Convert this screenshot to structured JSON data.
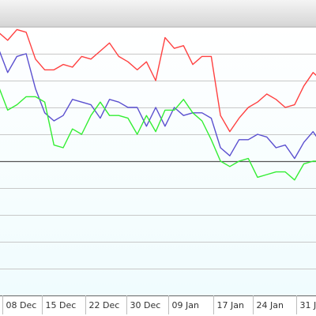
{
  "chart_data": {
    "type": "line",
    "grid": true,
    "x_ticks": [
      "08 Dec",
      "15 Dec",
      "22 Dec",
      "30 Dec",
      "09 Jan",
      "17 Jan",
      "24 Jan",
      "31 J"
    ],
    "y_axis": {
      "min": 0,
      "max": 100,
      "gridlines": [
        10,
        20,
        30,
        40,
        50,
        60,
        70,
        80,
        90,
        100
      ],
      "baseline": 50
    },
    "series": [
      {
        "color": "#ff4040",
        "values": [
          98,
          95,
          99,
          98,
          88,
          84,
          84,
          86,
          85,
          89,
          88,
          91,
          94,
          89,
          87,
          84,
          87,
          80,
          96,
          92,
          93,
          86,
          89,
          89,
          67,
          61,
          66,
          70,
          72,
          75,
          73,
          70,
          71,
          78,
          83,
          80
        ]
      },
      {
        "color": "#5a4fcf",
        "values": [
          92,
          83,
          89,
          90,
          77,
          68,
          65,
          67,
          73,
          72,
          71,
          66,
          73,
          72,
          70,
          70,
          63,
          70,
          63,
          70,
          67,
          68,
          68,
          66,
          55,
          52,
          58,
          58,
          60,
          59,
          55,
          56,
          51,
          57,
          61,
          56
        ]
      },
      {
        "color": "#33ee33",
        "values": [
          78,
          69,
          71,
          74,
          74,
          72,
          56,
          55,
          62,
          60,
          67,
          72,
          67,
          67,
          66,
          60,
          67,
          61,
          69,
          69,
          73,
          68,
          65,
          58,
          50,
          48,
          50,
          51,
          44,
          45,
          46,
          46,
          43,
          49,
          50,
          50
        ]
      }
    ]
  }
}
